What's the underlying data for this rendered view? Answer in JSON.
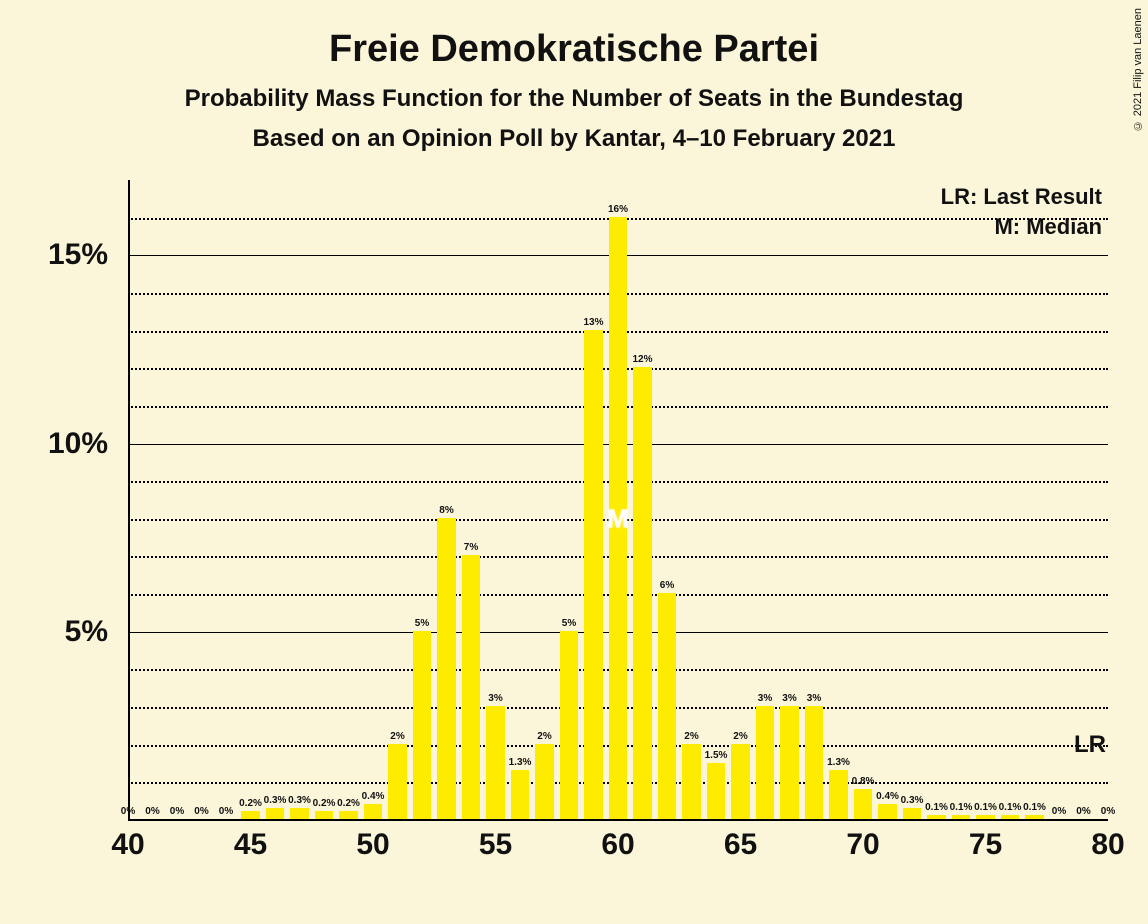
{
  "copyright": "© 2021 Filip van Laenen",
  "titles": {
    "main": "Freie Demokratische Partei",
    "sub1": "Probability Mass Function for the Number of Seats in the Bundestag",
    "sub2": "Based on an Opinion Poll by Kantar, 4–10 February 2021"
  },
  "legend": {
    "lr": "LR: Last Result",
    "median": "M: Median"
  },
  "side_labels": {
    "lr": "LR"
  },
  "chart": {
    "type": "bar",
    "background_color": "#fbf6d9",
    "bar_color": "#fdeb00",
    "axis_color": "#000000",
    "grid_color": "#000000",
    "xlim": [
      40,
      80
    ],
    "ylim": [
      0,
      17
    ],
    "y_major_ticks": [
      5,
      10,
      15
    ],
    "y_major_labels": [
      "5%",
      "10%",
      "15%"
    ],
    "y_minor_step": 1,
    "x_major_ticks": [
      40,
      45,
      50,
      55,
      60,
      65,
      70,
      75,
      80
    ],
    "x_major_labels": [
      "40",
      "45",
      "50",
      "55",
      "60",
      "65",
      "70",
      "75",
      "80"
    ],
    "bar_width": 0.75,
    "title_fontsize": 38,
    "subtitle_fontsize": 24,
    "axis_label_fontsize": 30,
    "bar_label_fontsize": 10,
    "median_x": 60,
    "median_mark": "M",
    "lr_y_percent": 2,
    "categories": [
      40,
      41,
      42,
      43,
      44,
      45,
      46,
      47,
      48,
      49,
      50,
      51,
      52,
      53,
      54,
      55,
      56,
      57,
      58,
      59,
      60,
      61,
      62,
      63,
      64,
      65,
      66,
      67,
      68,
      69,
      70,
      71,
      72,
      73,
      74,
      75,
      76,
      77,
      78,
      79,
      80
    ],
    "values": [
      0,
      0,
      0,
      0,
      0,
      0.2,
      0.3,
      0.3,
      0.2,
      0.2,
      0.4,
      2,
      5,
      8,
      7,
      3,
      1.3,
      2,
      5,
      13,
      16,
      12,
      6,
      2,
      1.5,
      2,
      3,
      3,
      3,
      1.3,
      0.8,
      0.4,
      0.3,
      0.1,
      0.1,
      0.1,
      0.1,
      0.1,
      0,
      0,
      0
    ],
    "value_labels": [
      "0%",
      "0%",
      "0%",
      "0%",
      "0%",
      "0.2%",
      "0.3%",
      "0.3%",
      "0.2%",
      "0.2%",
      "0.4%",
      "2%",
      "5%",
      "8%",
      "7%",
      "3%",
      "1.3%",
      "2%",
      "5%",
      "13%",
      "16%",
      "12%",
      "6%",
      "2%",
      "1.5%",
      "2%",
      "3%",
      "3%",
      "3%",
      "1.3%",
      "0.8%",
      "0.4%",
      "0.3%",
      "0.1%",
      "0.1%",
      "0.1%",
      "0.1%",
      "0.1%",
      "0%",
      "0%",
      "0%"
    ]
  }
}
